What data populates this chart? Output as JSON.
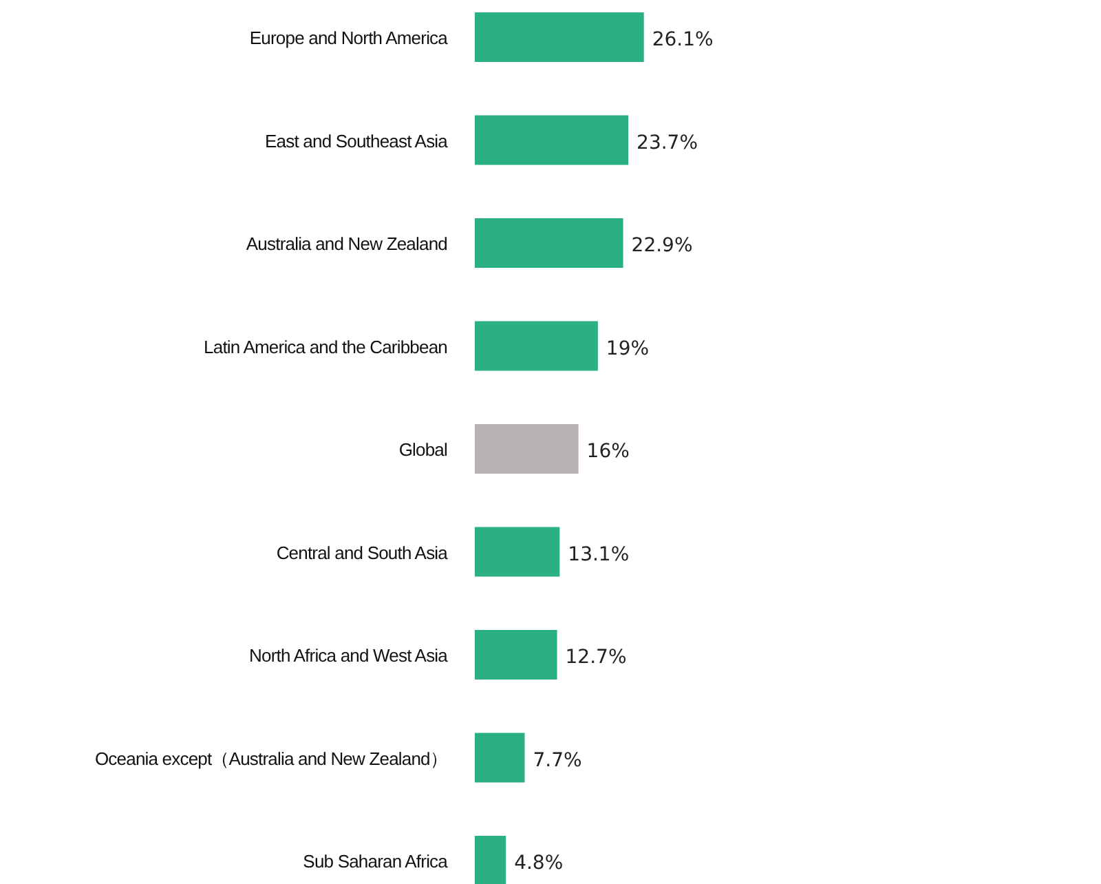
{
  "chart_data": {
    "type": "bar",
    "orientation": "horizontal",
    "categories": [
      "Europe and North America",
      "East and Southeast Asia",
      "Australia and New Zealand",
      "Latin America and the Caribbean",
      "Global",
      "Central and South Asia",
      "North Africa and West Asia",
      "Oceania except（Australia and New Zealand）",
      "Sub Saharan Africa"
    ],
    "values": [
      26.1,
      23.7,
      22.9,
      19,
      16,
      13.1,
      12.7,
      7.7,
      4.8
    ],
    "colors": [
      "#2bb084",
      "#2bb084",
      "#2bb084",
      "#2bb084",
      "#b8b3b3",
      "#2bb084",
      "#2bb084",
      "#2bb084",
      "#2bb084"
    ],
    "value_labels": [
      "26.1%",
      "23.7%",
      "22.9%",
      "19%",
      "16%",
      "13.1%",
      "12.7%",
      "7.7%",
      "4.8%"
    ]
  }
}
